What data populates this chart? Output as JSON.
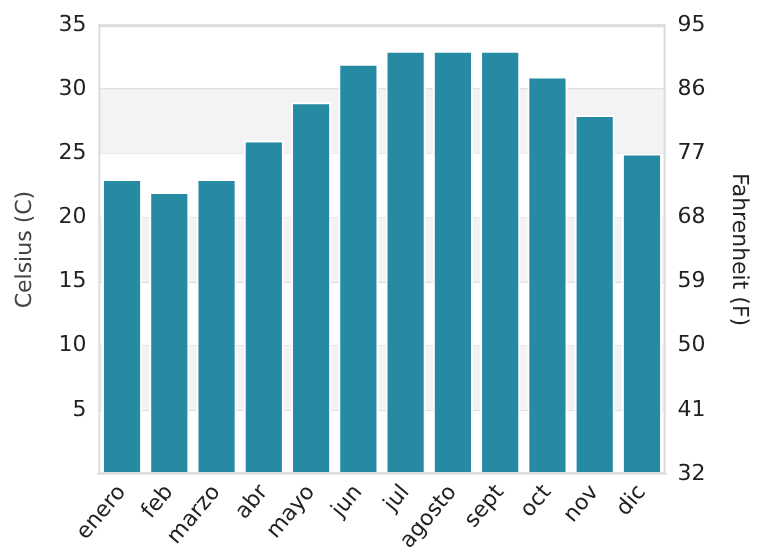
{
  "chart_data": {
    "type": "bar",
    "ylabel": "Celsius (C)",
    "y2label": "Fahrenheit (F)",
    "categories": [
      "enero",
      "feb",
      "marzo",
      "abr",
      "mayo",
      "jun",
      "jul",
      "agosto",
      "sept",
      "oct",
      "nov",
      "dic"
    ],
    "series": [
      {
        "color": "#268ba2",
        "values": [
          23,
          22,
          23,
          26,
          29,
          32,
          33,
          33,
          33,
          31,
          28,
          25
        ]
      }
    ],
    "ylim": [
      0,
      35
    ],
    "yticks": [
      5,
      10,
      15,
      20,
      25,
      30,
      35
    ],
    "y2lim": [
      32,
      95
    ],
    "y2ticks": [
      32,
      41,
      50,
      59,
      68,
      77,
      86,
      95
    ],
    "bands": [
      {
        "axis": "y",
        "from": 5,
        "to": 10,
        "color": "#f3f3f3"
      },
      {
        "axis": "y",
        "from": 15,
        "to": 20,
        "color": "#f3f3f3"
      },
      {
        "axis": "y",
        "from": 25,
        "to": 30,
        "color": "#f3f3f3"
      }
    ],
    "grid": "y",
    "legend": false
  }
}
